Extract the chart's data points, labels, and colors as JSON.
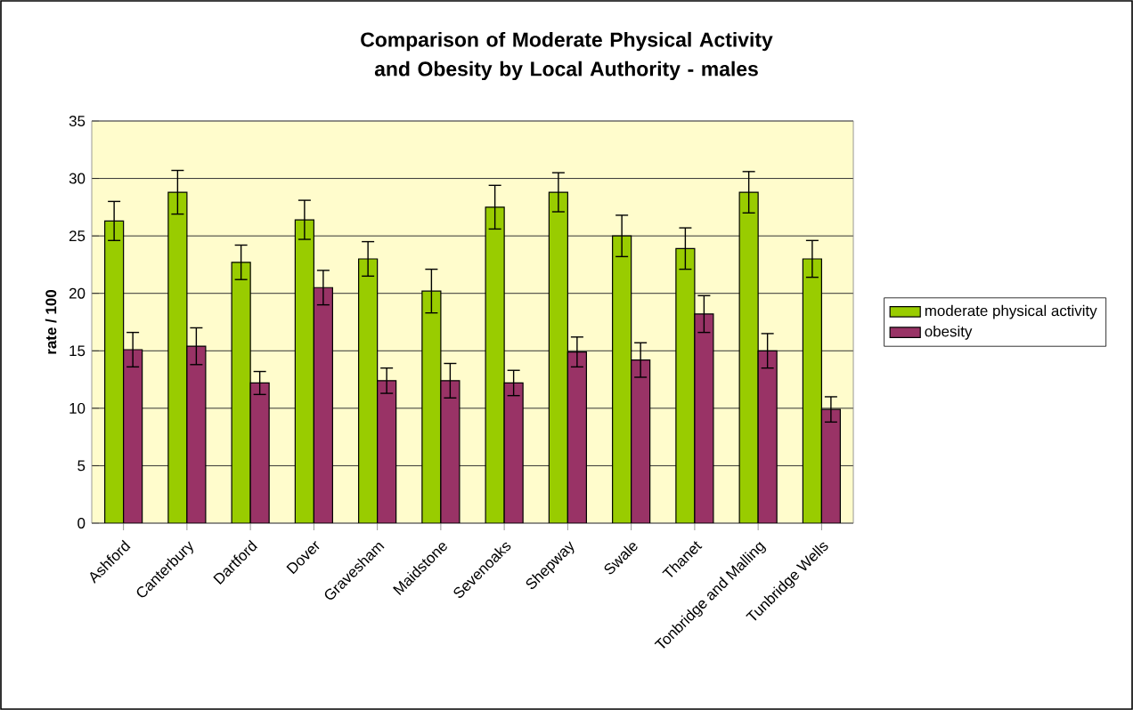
{
  "chart_data": {
    "type": "bar",
    "title": "Comparison of Moderate Physical Activity and Obesity by Local Authority - males",
    "ylabel": "rate / 100",
    "categories": [
      "Ashford",
      "Canterbury",
      "Dartford",
      "Dover",
      "Gravesham",
      "Maidstone",
      "Sevenoaks",
      "Shepway",
      "Swale",
      "Thanet",
      "Tonbridge and Malling",
      "Tunbridge Wells"
    ],
    "series": [
      {
        "name": "moderate physical activity",
        "color": "#99cc00",
        "values": [
          26.3,
          28.8,
          22.7,
          26.4,
          23.0,
          20.2,
          27.5,
          28.8,
          25.0,
          23.9,
          28.8,
          23.0
        ],
        "errors": [
          1.7,
          1.9,
          1.5,
          1.7,
          1.5,
          1.9,
          1.9,
          1.7,
          1.8,
          1.8,
          1.8,
          1.6
        ]
      },
      {
        "name": "obesity",
        "color": "#993366",
        "values": [
          15.1,
          15.4,
          12.2,
          20.5,
          12.4,
          12.4,
          12.2,
          14.9,
          14.2,
          18.2,
          15.0,
          9.9
        ],
        "errors": [
          1.5,
          1.6,
          1.0,
          1.5,
          1.1,
          1.5,
          1.1,
          1.3,
          1.5,
          1.6,
          1.5,
          1.1
        ]
      }
    ],
    "ylim": [
      0,
      35
    ],
    "yticks": [
      0,
      5,
      10,
      15,
      20,
      25,
      30,
      35
    ],
    "grid": "y",
    "legend": "right"
  }
}
